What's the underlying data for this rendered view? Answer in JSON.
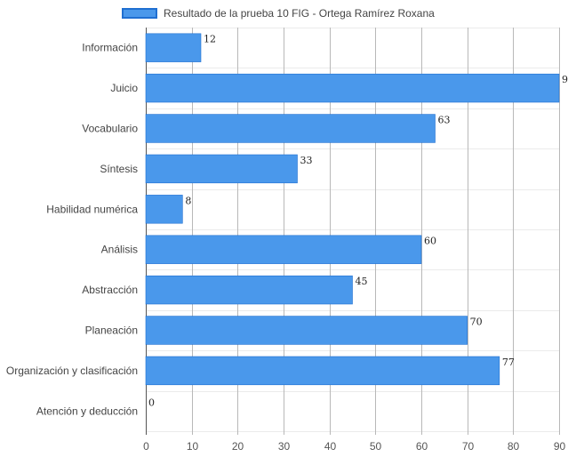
{
  "chart_data": {
    "type": "bar",
    "orientation": "horizontal",
    "categories": [
      "Información",
      "Juicio",
      "Vocabulario",
      "Síntesis",
      "Habilidad numérica",
      "Análisis",
      "Abstracción",
      "Planeación",
      "Organización y clasificación",
      "Atención y deducción"
    ],
    "series": [
      {
        "name": "Resultado de la prueba 10 FIG - Ortega Ramírez Roxana",
        "values": [
          12,
          90,
          63,
          33,
          8,
          60,
          45,
          70,
          77,
          0
        ]
      }
    ],
    "xlim": [
      0,
      90
    ],
    "xticks": [
      0,
      10,
      20,
      30,
      40,
      50,
      60,
      70,
      80,
      90
    ],
    "grid": true,
    "legend_position": "top",
    "bar_color": "#4a98eb",
    "bar_border_color": "#1f6fd1"
  }
}
